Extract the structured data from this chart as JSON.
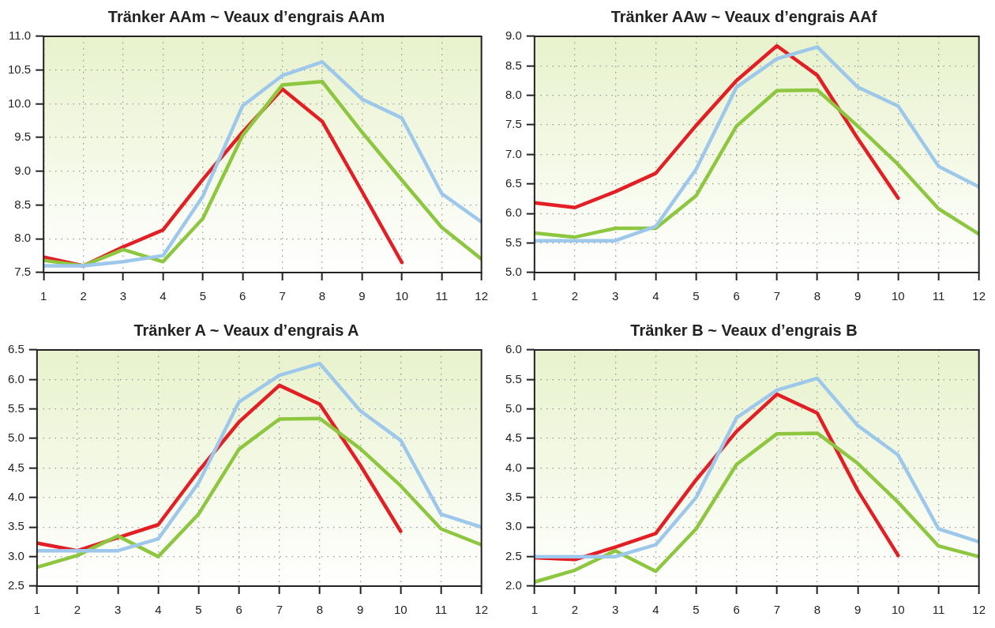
{
  "chart_data": [
    {
      "type": "line",
      "title": "Tränker AAm ~ Veaux d’engrais AAm",
      "x": [
        1,
        2,
        3,
        4,
        5,
        6,
        7,
        8,
        9,
        10,
        11,
        12
      ],
      "xlim": [
        1,
        12
      ],
      "xticks": [
        1,
        2,
        3,
        4,
        5,
        6,
        7,
        8,
        9,
        10,
        11,
        12
      ],
      "ylim": [
        7.5,
        11
      ],
      "yticks": [
        {
          "value": 7.5,
          "label": "7.5"
        },
        {
          "value": 8,
          "label": "8.0"
        },
        {
          "value": 8.5,
          "label": "8.5"
        },
        {
          "value": 9,
          "label": "9.0"
        },
        {
          "value": 9.5,
          "label": "9.5"
        },
        {
          "value": 10,
          "label": "10.0"
        },
        {
          "value": 10.5,
          "label": "10.5"
        },
        {
          "value": 11,
          "label": "11.0"
        }
      ],
      "grid": true,
      "marker": "none",
      "line_style": "solid",
      "series": [
        {
          "color": "#9dc8eb",
          "values": [
            7.6,
            7.6,
            7.66,
            7.75,
            8.63,
            9.97,
            10.42,
            10.62,
            10.07,
            9.79,
            8.67,
            8.25
          ]
        },
        {
          "color": "#8dc63f",
          "values": [
            7.68,
            7.6,
            7.84,
            7.66,
            8.3,
            9.53,
            10.28,
            10.33,
            9.58,
            8.87,
            8.17,
            7.7
          ]
        },
        {
          "color": "#e31e24",
          "values": [
            7.73,
            7.6,
            7.88,
            8.13,
            8.88,
            9.58,
            10.22,
            9.74,
            8.7,
            7.65,
            null,
            null
          ]
        }
      ]
    },
    {
      "type": "line",
      "title": "Tränker AAw ~ Veaux d’engrais AAf",
      "x": [
        1,
        2,
        3,
        4,
        5,
        6,
        7,
        8,
        9,
        10,
        11,
        12
      ],
      "xlim": [
        1,
        12
      ],
      "xticks": [
        1,
        2,
        3,
        4,
        5,
        6,
        7,
        8,
        9,
        10,
        11,
        12
      ],
      "ylim": [
        5,
        9
      ],
      "yticks": [
        {
          "value": 5,
          "label": "5.0"
        },
        {
          "value": 5.5,
          "label": "5.5"
        },
        {
          "value": 6,
          "label": "6.0"
        },
        {
          "value": 6.5,
          "label": "6.5"
        },
        {
          "value": 7,
          "label": "7.0"
        },
        {
          "value": 7.5,
          "label": "7.5"
        },
        {
          "value": 8,
          "label": "8.0"
        },
        {
          "value": 8.5,
          "label": "8.5"
        },
        {
          "value": 9,
          "label": "9.0"
        }
      ],
      "grid": true,
      "marker": "none",
      "line_style": "solid",
      "series": [
        {
          "color": "#9dc8eb",
          "values": [
            5.54,
            5.54,
            5.54,
            5.78,
            6.75,
            8.14,
            8.62,
            8.82,
            8.14,
            7.82,
            6.8,
            6.45
          ]
        },
        {
          "color": "#8dc63f",
          "values": [
            5.67,
            5.6,
            5.75,
            5.75,
            6.3,
            7.48,
            8.08,
            8.09,
            7.48,
            6.83,
            6.08,
            5.65
          ]
        },
        {
          "color": "#e31e24",
          "values": [
            6.18,
            6.1,
            6.37,
            6.68,
            7.49,
            8.25,
            8.84,
            8.34,
            7.27,
            6.26,
            null,
            null
          ]
        }
      ]
    },
    {
      "type": "line",
      "title": "Tränker A ~ Veaux d’engrais A",
      "x": [
        1,
        2,
        3,
        4,
        5,
        6,
        7,
        8,
        9,
        10,
        11,
        12
      ],
      "xlim": [
        1,
        12
      ],
      "xticks": [
        1,
        2,
        3,
        4,
        5,
        6,
        7,
        8,
        9,
        10,
        11,
        12
      ],
      "ylim": [
        2.5,
        6.5
      ],
      "yticks": [
        {
          "value": 2.5,
          "label": "2.5"
        },
        {
          "value": 3,
          "label": "3.0"
        },
        {
          "value": 3.5,
          "label": "3.5"
        },
        {
          "value": 4,
          "label": "4.0"
        },
        {
          "value": 4.5,
          "label": "4.5"
        },
        {
          "value": 5,
          "label": "5.0"
        },
        {
          "value": 5.5,
          "label": "5.5"
        },
        {
          "value": 6,
          "label": "6.0"
        },
        {
          "value": 6.5,
          "label": "6.5"
        }
      ],
      "grid": true,
      "marker": "none",
      "line_style": "solid",
      "series": [
        {
          "color": "#9dc8eb",
          "values": [
            3.1,
            3.1,
            3.1,
            3.3,
            4.25,
            5.62,
            6.07,
            6.27,
            5.47,
            4.97,
            3.72,
            3.5
          ]
        },
        {
          "color": "#8dc63f",
          "values": [
            2.82,
            3.02,
            3.35,
            3.0,
            3.72,
            4.82,
            5.33,
            5.34,
            4.83,
            4.2,
            3.47,
            3.2
          ]
        },
        {
          "color": "#e31e24",
          "values": [
            3.23,
            3.1,
            3.32,
            3.54,
            4.45,
            5.28,
            5.9,
            5.58,
            4.55,
            3.43,
            null,
            null
          ]
        }
      ]
    },
    {
      "type": "line",
      "title": "Tränker B ~ Veaux d’engrais B",
      "x": [
        1,
        2,
        3,
        4,
        5,
        6,
        7,
        8,
        9,
        10,
        11,
        12
      ],
      "xlim": [
        1,
        12
      ],
      "xticks": [
        1,
        2,
        3,
        4,
        5,
        6,
        7,
        8,
        9,
        10,
        11,
        12
      ],
      "ylim": [
        2,
        6
      ],
      "yticks": [
        {
          "value": 2,
          "label": "2.0"
        },
        {
          "value": 2.5,
          "label": "2.5"
        },
        {
          "value": 3,
          "label": "3.0"
        },
        {
          "value": 3.5,
          "label": "3.5"
        },
        {
          "value": 4,
          "label": "4.0"
        },
        {
          "value": 4.5,
          "label": "4.5"
        },
        {
          "value": 5,
          "label": "5.0"
        },
        {
          "value": 5.5,
          "label": "5.5"
        },
        {
          "value": 6,
          "label": "6.0"
        }
      ],
      "grid": true,
      "marker": "none",
      "line_style": "solid",
      "series": [
        {
          "color": "#9dc8eb",
          "values": [
            2.5,
            2.5,
            2.5,
            2.7,
            3.5,
            4.85,
            5.32,
            5.52,
            4.72,
            4.22,
            2.97,
            2.75
          ]
        },
        {
          "color": "#8dc63f",
          "values": [
            2.07,
            2.27,
            2.6,
            2.25,
            2.97,
            4.06,
            4.58,
            4.59,
            4.08,
            3.42,
            2.68,
            2.5
          ]
        },
        {
          "color": "#e31e24",
          "values": [
            2.48,
            2.45,
            2.66,
            2.89,
            3.8,
            4.62,
            5.25,
            4.93,
            3.62,
            2.52,
            null,
            null
          ]
        }
      ]
    }
  ]
}
